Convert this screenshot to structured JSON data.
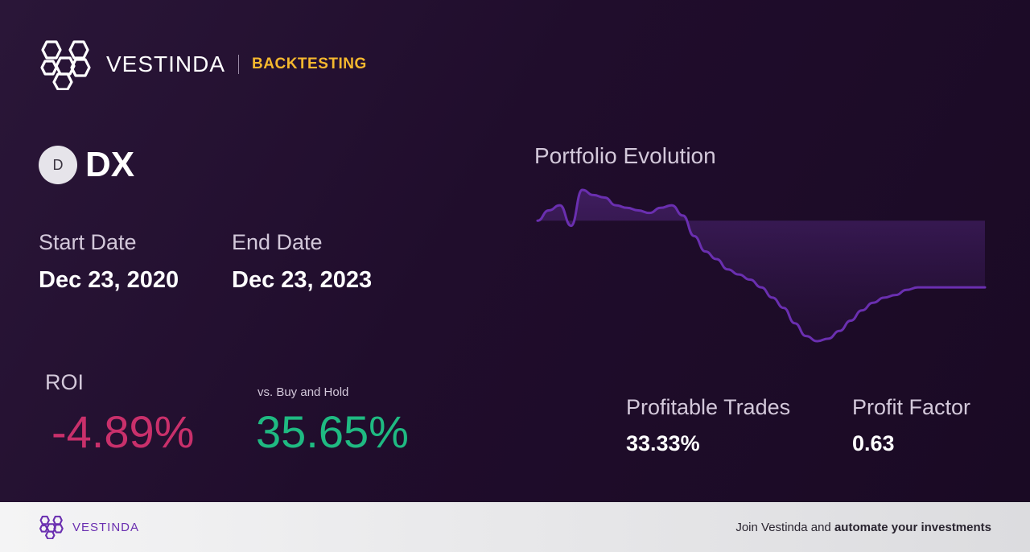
{
  "brand": {
    "name": "VESTINDA",
    "section": "BACKTESTING"
  },
  "ticker": {
    "initial": "D",
    "symbol": "DX"
  },
  "dates": {
    "start_label": "Start Date",
    "start_value": "Dec 23, 2020",
    "end_label": "End Date",
    "end_value": "Dec 23, 2023"
  },
  "roi": {
    "label": "ROI",
    "value": "-4.89%"
  },
  "buy_hold": {
    "label": "vs. Buy and Hold",
    "value": "35.65%"
  },
  "stats": {
    "profitable_label": "Profitable Trades",
    "profitable_value": "33.33%",
    "factor_label": "Profit Factor",
    "factor_value": "0.63"
  },
  "colors": {
    "negative": "#c9306b",
    "positive": "#1fba82",
    "accent": "#f5b82e",
    "line": "#6a2fb0"
  },
  "chart_data": {
    "type": "area",
    "title": "Portfolio Evolution",
    "x": [
      0,
      1,
      2,
      3,
      4,
      5,
      6,
      7,
      8,
      9,
      10,
      11,
      12,
      13,
      14,
      15,
      16,
      17,
      18,
      19,
      20,
      21,
      22,
      23,
      24,
      25,
      26,
      27,
      28,
      29,
      30,
      31,
      32,
      33,
      34,
      35,
      36,
      37,
      38,
      39,
      40
    ],
    "values": [
      0,
      0.4,
      0.6,
      -0.2,
      1.2,
      1.0,
      0.9,
      0.6,
      0.5,
      0.4,
      0.3,
      0.5,
      0.6,
      0.2,
      -0.6,
      -1.2,
      -1.5,
      -1.9,
      -2.1,
      -2.3,
      -2.6,
      -3.0,
      -3.4,
      -4.0,
      -4.5,
      -4.7,
      -4.6,
      -4.3,
      -3.9,
      -3.5,
      -3.2,
      -3.0,
      -2.9,
      -2.7,
      -2.6,
      -2.6,
      -2.6,
      -2.6,
      -2.6,
      -2.6,
      -2.6
    ],
    "baseline": 0
  },
  "footer": {
    "brand": "VESTINDA",
    "cta_prefix": "Join Vestinda and ",
    "cta_bold": "automate your investments"
  }
}
